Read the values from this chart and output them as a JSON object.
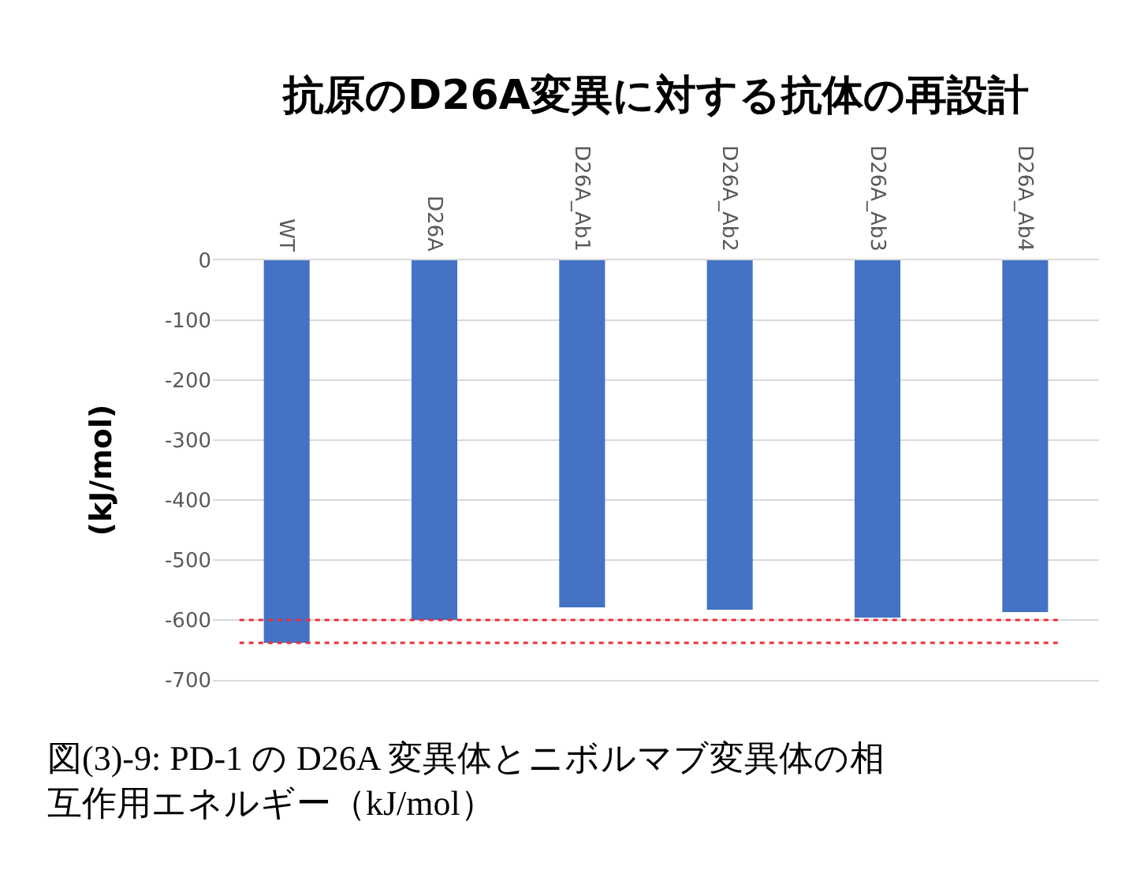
{
  "chart_data": {
    "type": "bar",
    "title": "抗原のD26A変異に対する抗体の再設計",
    "ylabel": "(kJ/mol)",
    "categories": [
      "WT",
      "D26A",
      "D26A_Ab1",
      "D26A_Ab2",
      "D26A_Ab3",
      "D26A_Ab4"
    ],
    "values": [
      -638,
      -600,
      -579,
      -583,
      -596,
      -587
    ],
    "color": "#4472c4",
    "ylim": [
      -700,
      0
    ],
    "yticks": [
      0,
      -100,
      -200,
      -300,
      -400,
      -500,
      -600,
      -700
    ],
    "grid": "y",
    "ref_lines": [
      {
        "axis": "y",
        "value": -600,
        "color": "#e8303a",
        "line_style": "dotted"
      },
      {
        "axis": "y",
        "value": -638,
        "color": "#e8303a",
        "line_style": "dotted"
      }
    ],
    "annotations": [
      "図(3)-9: PD-1 の D26A 変異体とニボルマブ変異体の相互作用エネルギー（kJ/mol）"
    ]
  }
}
